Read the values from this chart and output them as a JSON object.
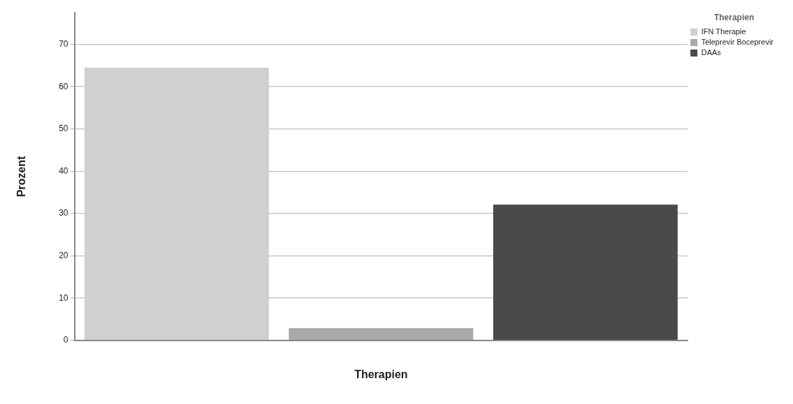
{
  "chart_data": {
    "type": "bar",
    "xlabel": "Therapien",
    "ylabel": "Prozent",
    "legend_title": "Therapien",
    "categories": [
      null,
      null,
      null
    ],
    "series": [
      {
        "name": "IFN Therapie",
        "color": "#d0d0d0",
        "values": [
          64.5,
          null,
          null
        ]
      },
      {
        "name": "Teleprevir Boceprevir",
        "color": "#a8a8a8",
        "values": [
          null,
          2.9,
          null
        ]
      },
      {
        "name": "DAAs",
        "color": "#4a4a4a",
        "values": [
          null,
          null,
          32.1
        ]
      }
    ],
    "ylim": [
      0,
      77.5
    ],
    "yticks": [
      0,
      10,
      20,
      30,
      40,
      50,
      60,
      70
    ],
    "grid": "y",
    "legend": "top right"
  }
}
